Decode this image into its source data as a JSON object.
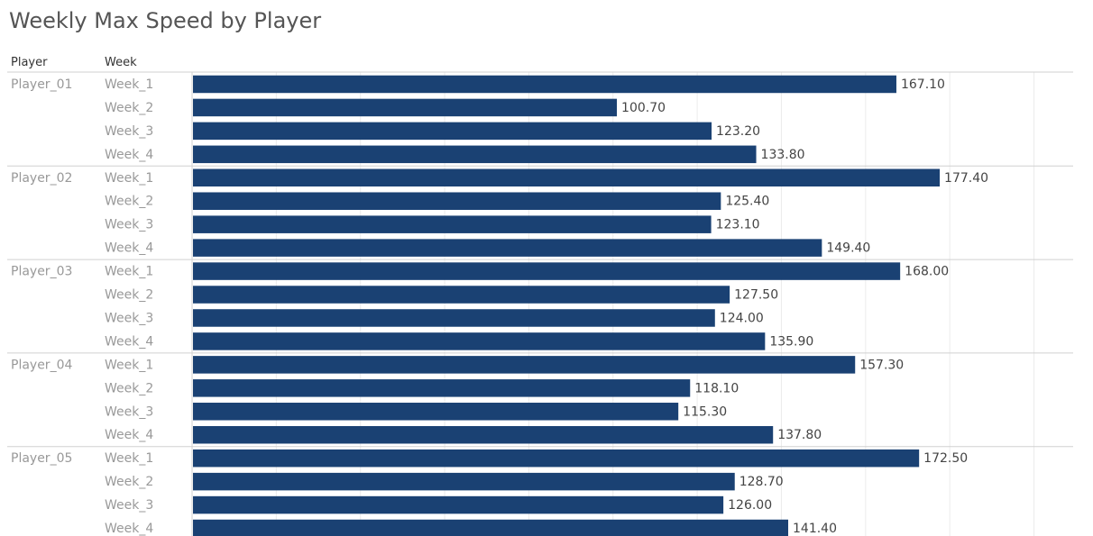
{
  "chart_data": {
    "type": "bar",
    "orientation": "horizontal",
    "title": "Weekly Max Speed by Player",
    "column_headers": {
      "player": "Player",
      "week": "Week"
    },
    "groups": [
      {
        "player": "Player_01",
        "weeks": [
          "Week_1",
          "Week_2",
          "Week_3",
          "Week_4"
        ],
        "values": [
          167.1,
          100.7,
          123.2,
          133.8
        ],
        "labels": [
          "167.10",
          "100.70",
          "123.20",
          "133.80"
        ]
      },
      {
        "player": "Player_02",
        "weeks": [
          "Week_1",
          "Week_2",
          "Week_3",
          "Week_4"
        ],
        "values": [
          177.4,
          125.4,
          123.1,
          149.4
        ],
        "labels": [
          "177.40",
          "125.40",
          "123.10",
          "149.40"
        ]
      },
      {
        "player": "Player_03",
        "weeks": [
          "Week_1",
          "Week_2",
          "Week_3",
          "Week_4"
        ],
        "values": [
          168.0,
          127.5,
          124.0,
          135.9
        ],
        "labels": [
          "168.00",
          "127.50",
          "124.00",
          "135.90"
        ]
      },
      {
        "player": "Player_04",
        "weeks": [
          "Week_1",
          "Week_2",
          "Week_3",
          "Week_4"
        ],
        "values": [
          157.3,
          118.1,
          115.3,
          137.8
        ],
        "labels": [
          "157.30",
          "118.10",
          "115.30",
          "137.80"
        ]
      },
      {
        "player": "Player_05",
        "weeks": [
          "Week_1",
          "Week_2",
          "Week_3",
          "Week_4"
        ],
        "values": [
          172.5,
          128.7,
          126.0,
          141.4
        ],
        "labels": [
          "172.50",
          "128.70",
          "126.00",
          "141.40"
        ]
      }
    ],
    "xlim": [
      0,
      200
    ],
    "grid": true,
    "gridline_step": 20,
    "bar_color": "#1a4173",
    "gridline_color": "#ececec",
    "separator_color": "#d0d0d0"
  }
}
